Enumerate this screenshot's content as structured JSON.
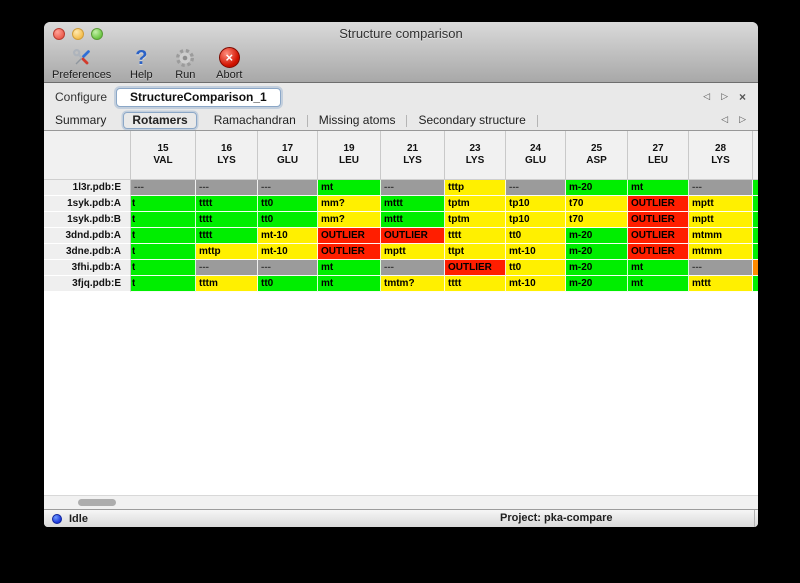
{
  "window": {
    "title": "Structure comparison"
  },
  "toolbar": {
    "items": [
      {
        "label": "Preferences",
        "icon": "tools-icon"
      },
      {
        "label": "Help",
        "icon": "help-icon"
      },
      {
        "label": "Run",
        "icon": "gear-icon"
      },
      {
        "label": "Abort",
        "icon": "abort-icon"
      }
    ]
  },
  "configure": {
    "label": "Configure",
    "value": "StructureComparison_1",
    "prev_glyph": "◁",
    "next_glyph": "▷",
    "close_glyph": "×"
  },
  "tabs": {
    "items": [
      "Summary",
      "Rotamers",
      "Ramachandran",
      "Missing atoms",
      "Secondary structure"
    ],
    "active": "Rotamers",
    "prev_glyph": "◁",
    "next_glyph": "▷"
  },
  "colors": {
    "good_green": "#00ee00",
    "warn_yellow": "#fff000",
    "outlier_red": "#ff1e00",
    "missing_gray": "#9b9b9b",
    "edge_orange": "#ff8a00"
  },
  "table": {
    "columns": [
      {
        "num": "15",
        "res": "VAL"
      },
      {
        "num": "16",
        "res": "LYS"
      },
      {
        "num": "17",
        "res": "GLU"
      },
      {
        "num": "19",
        "res": "LEU"
      },
      {
        "num": "21",
        "res": "LYS"
      },
      {
        "num": "23",
        "res": "LYS"
      },
      {
        "num": "24",
        "res": "GLU"
      },
      {
        "num": "25",
        "res": "ASP"
      },
      {
        "num": "27",
        "res": "LEU"
      },
      {
        "num": "28",
        "res": "LYS"
      }
    ],
    "rows": [
      {
        "label": "1l3r.pdb:E",
        "edge": "g",
        "cells": [
          {
            "t": "---",
            "c": "n"
          },
          {
            "t": "---",
            "c": "n"
          },
          {
            "t": "---",
            "c": "n"
          },
          {
            "t": "mt",
            "c": "g"
          },
          {
            "t": "---",
            "c": "n"
          },
          {
            "t": "tttp",
            "c": "y"
          },
          {
            "t": "---",
            "c": "n"
          },
          {
            "t": "m-20",
            "c": "g"
          },
          {
            "t": "mt",
            "c": "g"
          },
          {
            "t": "---",
            "c": "n"
          }
        ]
      },
      {
        "label": "1syk.pdb:A",
        "edge": "g",
        "cells": [
          {
            "t": "t",
            "c": "g",
            "clip": true
          },
          {
            "t": "tttt",
            "c": "g"
          },
          {
            "t": "tt0",
            "c": "g"
          },
          {
            "t": "mm?",
            "c": "y"
          },
          {
            "t": "mttt",
            "c": "g"
          },
          {
            "t": "tptm",
            "c": "y"
          },
          {
            "t": "tp10",
            "c": "y"
          },
          {
            "t": "t70",
            "c": "y"
          },
          {
            "t": "OUTLIER",
            "c": "r"
          },
          {
            "t": "mptt",
            "c": "y"
          }
        ]
      },
      {
        "label": "1syk.pdb:B",
        "edge": "g",
        "cells": [
          {
            "t": "t",
            "c": "g",
            "clip": true
          },
          {
            "t": "tttt",
            "c": "g"
          },
          {
            "t": "tt0",
            "c": "g"
          },
          {
            "t": "mm?",
            "c": "y"
          },
          {
            "t": "mttt",
            "c": "g"
          },
          {
            "t": "tptm",
            "c": "y"
          },
          {
            "t": "tp10",
            "c": "y"
          },
          {
            "t": "t70",
            "c": "y"
          },
          {
            "t": "OUTLIER",
            "c": "r"
          },
          {
            "t": "mptt",
            "c": "y"
          }
        ]
      },
      {
        "label": "3dnd.pdb:A",
        "edge": "g",
        "cells": [
          {
            "t": "t",
            "c": "g",
            "clip": true
          },
          {
            "t": "tttt",
            "c": "g"
          },
          {
            "t": "mt-10",
            "c": "y"
          },
          {
            "t": "OUTLIER",
            "c": "r"
          },
          {
            "t": "OUTLIER",
            "c": "r"
          },
          {
            "t": "tttt",
            "c": "y"
          },
          {
            "t": "tt0",
            "c": "y"
          },
          {
            "t": "m-20",
            "c": "g"
          },
          {
            "t": "OUTLIER",
            "c": "r"
          },
          {
            "t": "mtmm",
            "c": "y"
          }
        ]
      },
      {
        "label": "3dne.pdb:A",
        "edge": "g",
        "cells": [
          {
            "t": "t",
            "c": "g",
            "clip": true
          },
          {
            "t": "mttp",
            "c": "y"
          },
          {
            "t": "mt-10",
            "c": "y"
          },
          {
            "t": "OUTLIER",
            "c": "r"
          },
          {
            "t": "mptt",
            "c": "y"
          },
          {
            "t": "ttpt",
            "c": "y"
          },
          {
            "t": "mt-10",
            "c": "y"
          },
          {
            "t": "m-20",
            "c": "g"
          },
          {
            "t": "OUTLIER",
            "c": "r"
          },
          {
            "t": "mtmm",
            "c": "y"
          }
        ]
      },
      {
        "label": "3fhi.pdb:A",
        "edge": "o",
        "cells": [
          {
            "t": "t",
            "c": "g",
            "clip": true
          },
          {
            "t": "---",
            "c": "n"
          },
          {
            "t": "---",
            "c": "n"
          },
          {
            "t": "mt",
            "c": "g"
          },
          {
            "t": "---",
            "c": "n"
          },
          {
            "t": "OUTLIER",
            "c": "r"
          },
          {
            "t": "tt0",
            "c": "y"
          },
          {
            "t": "m-20",
            "c": "g"
          },
          {
            "t": "mt",
            "c": "g"
          },
          {
            "t": "---",
            "c": "n"
          }
        ]
      },
      {
        "label": "3fjq.pdb:E",
        "edge": "g",
        "cells": [
          {
            "t": "t",
            "c": "g",
            "clip": true
          },
          {
            "t": "tttm",
            "c": "y"
          },
          {
            "t": "tt0",
            "c": "g"
          },
          {
            "t": "mt",
            "c": "g"
          },
          {
            "t": "tmtm?",
            "c": "y"
          },
          {
            "t": "tttt",
            "c": "y"
          },
          {
            "t": "mt-10",
            "c": "y"
          },
          {
            "t": "m-20",
            "c": "g"
          },
          {
            "t": "mt",
            "c": "g"
          },
          {
            "t": "mttt",
            "c": "y"
          }
        ]
      }
    ]
  },
  "statusbar": {
    "status": "Idle",
    "project": "Project: pka-compare"
  }
}
